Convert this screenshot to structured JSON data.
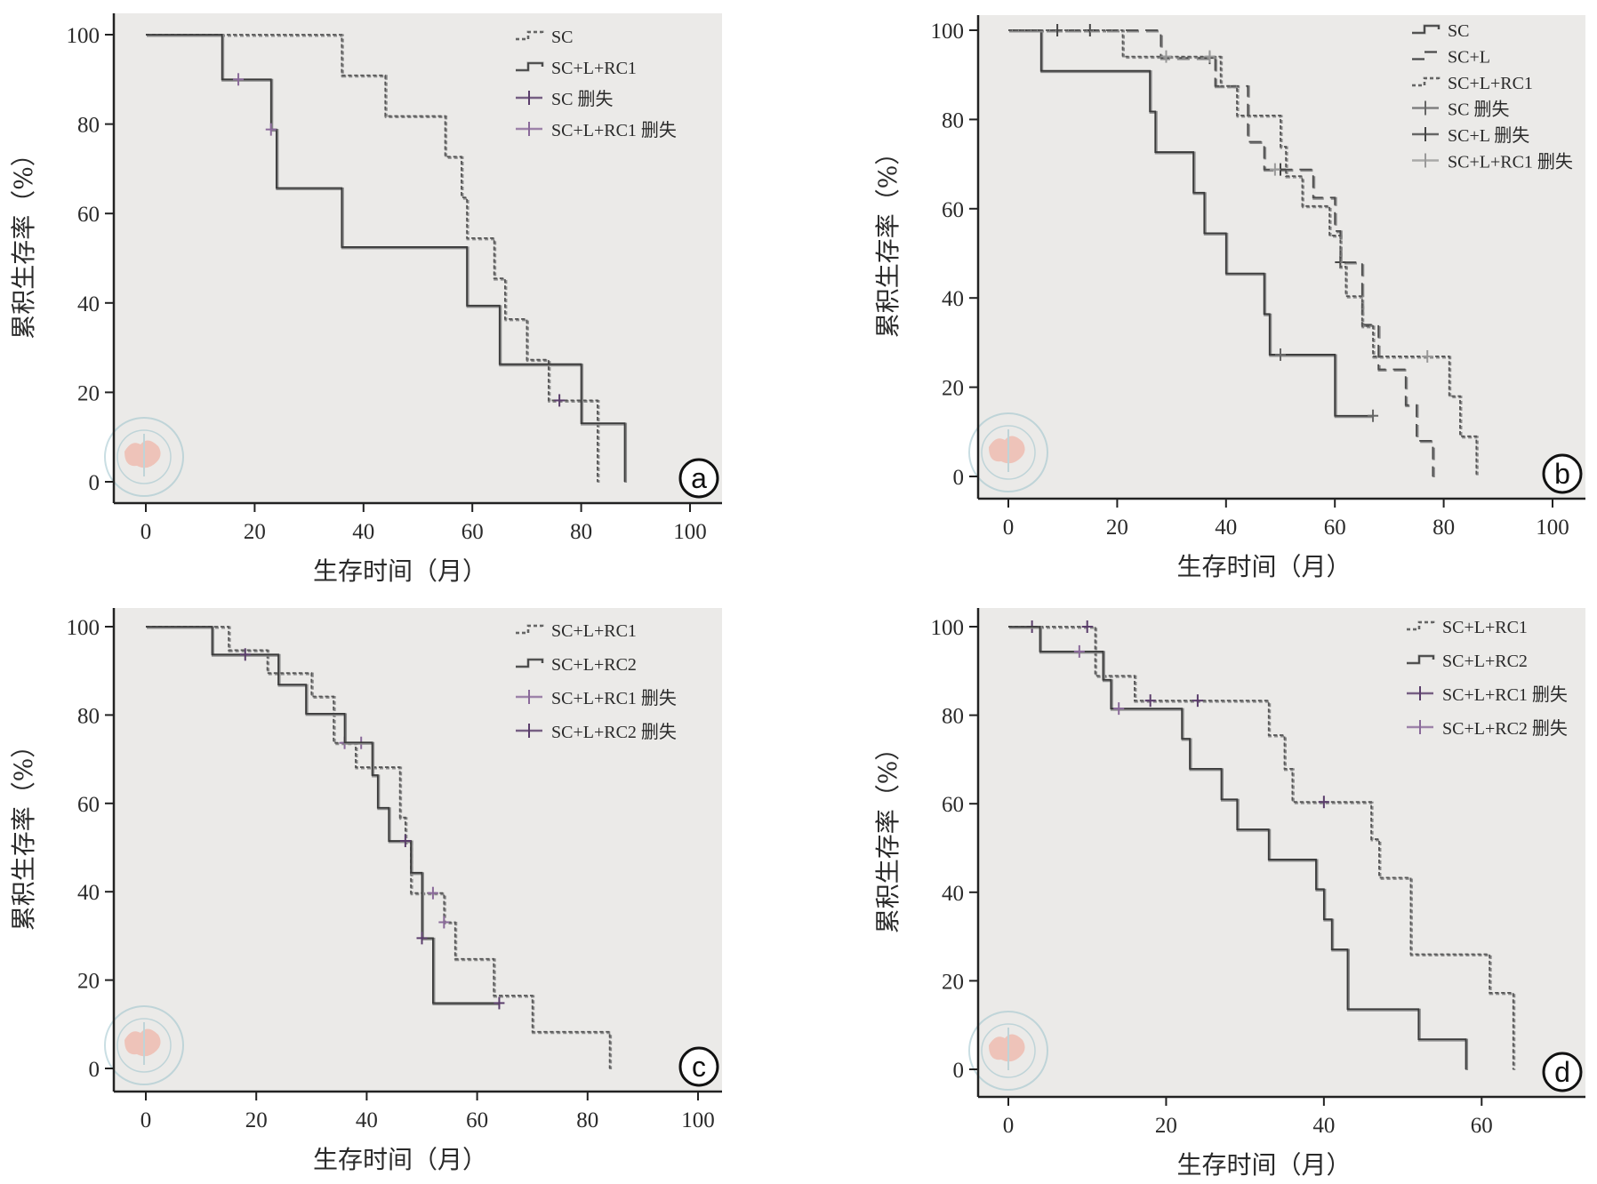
{
  "figure": {
    "panel_count": 4,
    "watermark": "中华医学会 Chinese Medical Association seal"
  },
  "chart_data": [
    {
      "panel": "a",
      "type": "line",
      "subtype": "kaplan-meier step",
      "xlabel": "生存时间（月）",
      "ylabel": "累积生存率（%）",
      "xlim": [
        0,
        100
      ],
      "ylim": [
        0,
        100
      ],
      "xticks": [
        0,
        20,
        40,
        60,
        80,
        100
      ],
      "yticks": [
        0,
        20,
        40,
        60,
        80,
        100
      ],
      "grid": false,
      "legend_position": "top-right",
      "legend": [
        {
          "label": "SC",
          "kind": "line",
          "style": "dotted",
          "color": "#555555"
        },
        {
          "label": "SC+L+RC1",
          "kind": "line",
          "style": "solid",
          "color": "#3a3a3a"
        },
        {
          "label": "SC 删失",
          "kind": "censor",
          "color": "#5a3d6b"
        },
        {
          "label": "SC+L+RC1 删失",
          "kind": "censor",
          "color": "#8a6a9a"
        }
      ],
      "series": [
        {
          "name": "SC",
          "style": "dotted",
          "color": "#555555",
          "steps": [
            [
              0,
              100
            ],
            [
              36,
              90.9
            ],
            [
              44,
              81.8
            ],
            [
              55,
              72.7
            ],
            [
              58,
              63.6
            ],
            [
              59,
              54.5
            ],
            [
              64,
              45.5
            ],
            [
              66,
              36.4
            ],
            [
              70,
              27.3
            ],
            [
              74,
              18.2
            ],
            [
              83,
              0
            ]
          ],
          "censored": [
            [
              76,
              18.2
            ]
          ]
        },
        {
          "name": "SC+L+RC1",
          "style": "solid",
          "color": "#3a3a3a",
          "steps": [
            [
              0,
              100
            ],
            [
              14,
              90
            ],
            [
              23,
              78.8
            ],
            [
              24,
              65.7
            ],
            [
              36,
              52.5
            ],
            [
              59,
              39.4
            ],
            [
              65,
              26.3
            ],
            [
              80,
              13.1
            ],
            [
              88,
              0
            ]
          ],
          "censored": [
            [
              17,
              90
            ],
            [
              23,
              78.8
            ]
          ]
        }
      ],
      "annotation": "a"
    },
    {
      "panel": "b",
      "type": "line",
      "subtype": "kaplan-meier step",
      "xlabel": "生存时间（月）",
      "ylabel": "累积生存率（%）",
      "xlim": [
        0,
        100
      ],
      "ylim": [
        0,
        100
      ],
      "xticks": [
        0,
        20,
        40,
        60,
        80,
        100
      ],
      "yticks": [
        0,
        20,
        40,
        60,
        80,
        100
      ],
      "grid": false,
      "legend_position": "top-right",
      "legend": [
        {
          "label": "SC",
          "kind": "line",
          "style": "solid",
          "color": "#3a3a3a"
        },
        {
          "label": "SC+L",
          "kind": "line",
          "style": "longdash",
          "color": "#4a4a4a"
        },
        {
          "label": "SC+L+RC1",
          "kind": "line",
          "style": "dotted",
          "color": "#555555"
        },
        {
          "label": "SC 删失",
          "kind": "censor",
          "color": "#666666"
        },
        {
          "label": "SC+L 删失",
          "kind": "censor",
          "color": "#444444"
        },
        {
          "label": "SC+L+RC1 删失",
          "kind": "censor",
          "color": "#999999"
        }
      ],
      "series": [
        {
          "name": "SC",
          "style": "solid",
          "color": "#3a3a3a",
          "steps": [
            [
              0,
              100
            ],
            [
              6,
              90.9
            ],
            [
              26,
              81.8
            ],
            [
              27,
              72.7
            ],
            [
              34,
              63.6
            ],
            [
              36,
              54.5
            ],
            [
              40,
              45.5
            ],
            [
              47,
              36.4
            ],
            [
              48,
              27.3
            ],
            [
              60,
              13.6
            ]
          ],
          "end": 67,
          "censored": [
            [
              50,
              27.3
            ],
            [
              67,
              13.6
            ]
          ]
        },
        {
          "name": "SC+L",
          "style": "longdash",
          "color": "#4a4a4a",
          "steps": [
            [
              0,
              100
            ],
            [
              28,
              93.8
            ],
            [
              38,
              87.5
            ],
            [
              44,
              75
            ],
            [
              47,
              68.8
            ],
            [
              56,
              62.5
            ],
            [
              60,
              55
            ],
            [
              61,
              48
            ],
            [
              65,
              34
            ],
            [
              68,
              24
            ],
            [
              73,
              16
            ],
            [
              75,
              8
            ],
            [
              78,
              0
            ]
          ],
          "censored": [
            [
              9,
              100
            ],
            [
              15,
              100
            ],
            [
              37,
              93.8
            ],
            [
              50,
              68.8
            ],
            [
              61,
              48
            ]
          ]
        },
        {
          "name": "SC+L+RC1",
          "style": "dotted",
          "color": "#555555",
          "steps": [
            [
              0,
              100
            ],
            [
              21,
              94.1
            ],
            [
              39,
              87.5
            ],
            [
              42,
              80.9
            ],
            [
              50,
              73.9
            ],
            [
              51,
              67.3
            ],
            [
              54,
              60.6
            ],
            [
              59,
              54
            ],
            [
              61,
              47
            ],
            [
              62,
              40.4
            ],
            [
              65,
              33.7
            ],
            [
              67,
              26.9
            ],
            [
              81,
              18
            ],
            [
              83,
              9
            ],
            [
              86,
              0
            ]
          ],
          "censored": [
            [
              29,
              94.1
            ],
            [
              37,
              94.1
            ],
            [
              49,
              68.8
            ],
            [
              77,
              26.9
            ]
          ]
        }
      ],
      "annotation": "b"
    },
    {
      "panel": "c",
      "type": "line",
      "subtype": "kaplan-meier step",
      "xlabel": "生存时间（月）",
      "ylabel": "累积生存率（%）",
      "xlim": [
        0,
        100
      ],
      "ylim": [
        0,
        100
      ],
      "xticks": [
        0,
        20,
        40,
        60,
        80,
        100
      ],
      "yticks": [
        0,
        20,
        40,
        60,
        80,
        100
      ],
      "grid": false,
      "legend_position": "top-right",
      "legend": [
        {
          "label": "SC+L+RC1",
          "kind": "line",
          "style": "dotted",
          "color": "#555555"
        },
        {
          "label": "SC+L+RC2",
          "kind": "line",
          "style": "solid",
          "color": "#3a3a3a"
        },
        {
          "label": "SC+L+RC1 删失",
          "kind": "censor",
          "color": "#8a6a9a"
        },
        {
          "label": "SC+L+RC2 删失",
          "kind": "censor",
          "color": "#5a3d6b"
        }
      ],
      "series": [
        {
          "name": "SC+L+RC1",
          "style": "dotted",
          "color": "#555555",
          "steps": [
            [
              0,
              100
            ],
            [
              15,
              94.7
            ],
            [
              22,
              89.5
            ],
            [
              30,
              84.2
            ],
            [
              34,
              73.7
            ],
            [
              38,
              68.2
            ],
            [
              46,
              56.8
            ],
            [
              47,
              51.2
            ],
            [
              48,
              39.7
            ],
            [
              54,
              33.1
            ],
            [
              56,
              24.8
            ],
            [
              63,
              16.5
            ],
            [
              70,
              8.3
            ],
            [
              84,
              0
            ]
          ],
          "censored": [
            [
              36,
              73.7
            ],
            [
              39,
              73.7
            ],
            [
              52,
              39.7
            ],
            [
              54,
              33.1
            ]
          ]
        },
        {
          "name": "SC+L+RC2",
          "style": "solid",
          "color": "#3a3a3a",
          "steps": [
            [
              0,
              100
            ],
            [
              12,
              93.7
            ],
            [
              24,
              86.9
            ],
            [
              29,
              80.3
            ],
            [
              36,
              73.8
            ],
            [
              41,
              66.4
            ],
            [
              42,
              59
            ],
            [
              44,
              51.5
            ],
            [
              48,
              44.3
            ],
            [
              50,
              29.5
            ],
            [
              52,
              14.8
            ]
          ],
          "end": 64,
          "censored": [
            [
              18,
              93.7
            ],
            [
              47,
              51.5
            ],
            [
              50,
              29.5
            ],
            [
              64,
              14.8
            ]
          ]
        }
      ],
      "annotation": "c"
    },
    {
      "panel": "d",
      "type": "line",
      "subtype": "kaplan-meier step",
      "xlabel": "生存时间（月）",
      "ylabel": "累积生存率（%）",
      "xlim": [
        0,
        70
      ],
      "ylim": [
        0,
        100
      ],
      "xticks": [
        0,
        20,
        40,
        60
      ],
      "yticks": [
        0,
        20,
        40,
        60,
        80,
        100
      ],
      "grid": false,
      "legend_position": "top-right",
      "legend": [
        {
          "label": "SC+L+RC1",
          "kind": "line",
          "style": "dotted",
          "color": "#555555"
        },
        {
          "label": "SC+L+RC2",
          "kind": "line",
          "style": "solid",
          "color": "#3a3a3a"
        },
        {
          "label": "SC+L+RC1 删失",
          "kind": "censor",
          "color": "#5a3d6b"
        },
        {
          "label": "SC+L+RC2 删失",
          "kind": "censor",
          "color": "#8a6a9a"
        }
      ],
      "series": [
        {
          "name": "SC+L+RC1",
          "style": "dotted",
          "color": "#555555",
          "steps": [
            [
              0,
              100
            ],
            [
              11,
              88.9
            ],
            [
              16,
              83.3
            ],
            [
              33,
              75.5
            ],
            [
              35,
              67.9
            ],
            [
              36,
              60.4
            ],
            [
              46,
              52
            ],
            [
              47,
              43.3
            ],
            [
              51,
              26
            ],
            [
              61,
              17.3
            ],
            [
              64,
              0
            ]
          ],
          "censored": [
            [
              3,
              100
            ],
            [
              10,
              100
            ],
            [
              18,
              83.3
            ],
            [
              24,
              83.3
            ],
            [
              40,
              60.4
            ]
          ]
        },
        {
          "name": "SC+L+RC2",
          "style": "solid",
          "color": "#3a3a3a",
          "steps": [
            [
              0,
              100
            ],
            [
              4,
              94.4
            ],
            [
              12,
              88
            ],
            [
              13,
              81.5
            ],
            [
              22,
              74.7
            ],
            [
              23,
              67.9
            ],
            [
              27,
              61
            ],
            [
              29,
              54.2
            ],
            [
              33,
              47.4
            ],
            [
              39,
              40.7
            ],
            [
              40,
              33.9
            ],
            [
              41,
              27.1
            ],
            [
              43,
              13.6
            ],
            [
              52,
              6.8
            ],
            [
              58,
              0
            ]
          ],
          "censored": [
            [
              9,
              94.4
            ],
            [
              14,
              81.5
            ]
          ]
        }
      ],
      "annotation": "d"
    }
  ]
}
